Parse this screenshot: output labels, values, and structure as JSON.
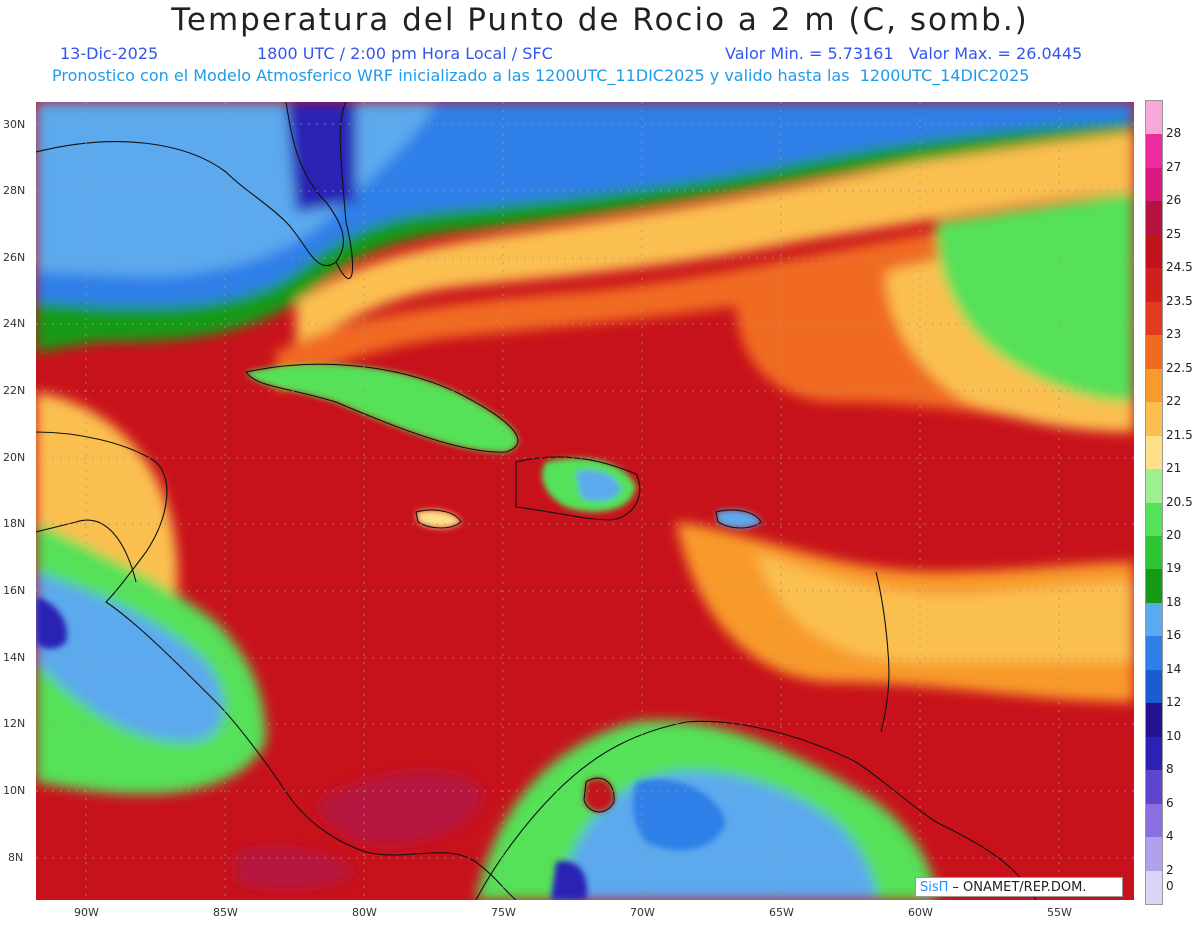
{
  "header": {
    "title": "Temperatura del Punto de Rocio a 2 m (C, somb.)",
    "date": "13-Dic-2025",
    "time": "1800 UTC / 2:00 pm Hora Local / SFC",
    "minmax": "Valor Min. = 5.73161   Valor Max. = 26.0445",
    "model": "Pronostico con el Modelo Atmosferico WRF inicializado a las 1200UTC_11DIC2025 y valido hasta las  1200UTC_14DIC2025"
  },
  "axes": {
    "lat_labels": [
      "30N",
      "28N",
      "26N",
      "24N",
      "22N",
      "20N",
      "18N",
      "16N",
      "14N",
      "12N",
      "10N",
      "8N"
    ],
    "lon_labels": [
      "90W",
      "85W",
      "80W",
      "75W",
      "70W",
      "65W",
      "60W",
      "55W"
    ]
  },
  "colorbar": {
    "labels": [
      "28",
      "27",
      "26",
      "25",
      "24.5",
      "23.5",
      "23",
      "22.5",
      "22",
      "21.5",
      "21",
      "20.5",
      "20",
      "19",
      "18",
      "16",
      "14",
      "12",
      "10",
      "8",
      "6",
      "4",
      "2",
      "0"
    ],
    "colors": [
      "#f6a9d6",
      "#ec2b9e",
      "#d81a7f",
      "#b6123f",
      "#c0121a",
      "#d11f1c",
      "#e13a1c",
      "#f16a22",
      "#f89a2c",
      "#fbbf50",
      "#fde089",
      "#9df08f",
      "#55e159",
      "#2dc531",
      "#159a16",
      "#5ba9ee",
      "#2e7fe8",
      "#1a5cd2",
      "#23138f",
      "#2a21b5",
      "#5e45cc",
      "#8a6fe0",
      "#b0a0ee",
      "#d8d6f4"
    ]
  },
  "credit": {
    "sis": "SisΠ",
    "org": "– ONAMET/REP.DOM."
  }
}
